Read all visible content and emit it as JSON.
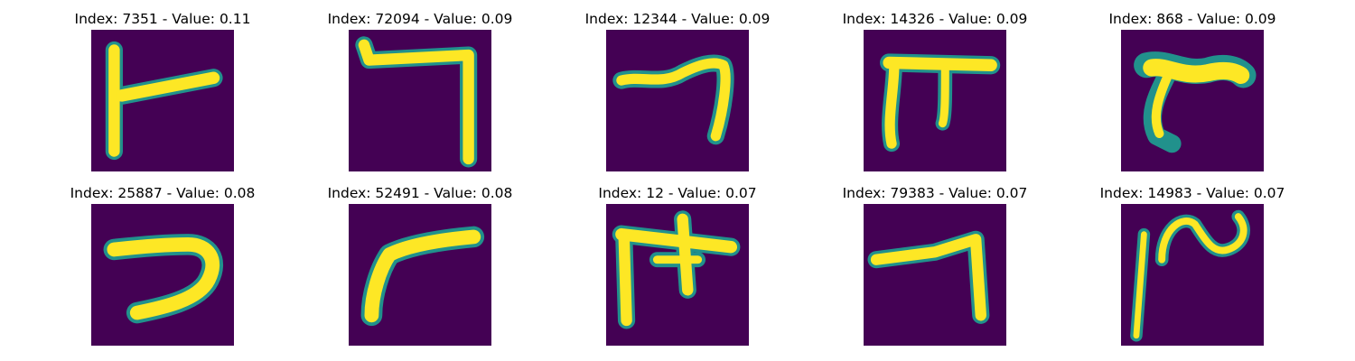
{
  "colors": {
    "background": "#440154",
    "mid": "#21918c",
    "light": "#5ec962",
    "stroke": "#fde725"
  },
  "panels": [
    {
      "title": "Index: 7351 - Value: 0.11",
      "glyph": "vertical stroke with long horizontal arm to the right"
    },
    {
      "title": "Index: 72094 - Value: 0.09",
      "glyph": "horizontal top bar with long descender on right"
    },
    {
      "title": "Index: 12344 - Value: 0.09",
      "glyph": "wavy horizontal stroke turning down on right"
    },
    {
      "title": "Index: 14326 - Value: 0.09",
      "glyph": "horizontal bar with two legs"
    },
    {
      "title": "Index: 868 - Value: 0.09",
      "glyph": "thick horizontal blob with curved left leg"
    },
    {
      "title": "Index: 25887 - Value: 0.08",
      "glyph": "reversed C shape"
    },
    {
      "title": "Index: 52491 - Value: 0.08",
      "glyph": "curved stroke from bottom-left to top-right"
    },
    {
      "title": "Index: 12 - Value: 0.07",
      "glyph": "horizontal bar with two legs and cross"
    },
    {
      "title": "Index: 79383 - Value: 0.07",
      "glyph": "slanted horizontal with right descender"
    },
    {
      "title": "Index: 14983 - Value: 0.07",
      "glyph": "vertical line with wavy loop"
    }
  ]
}
